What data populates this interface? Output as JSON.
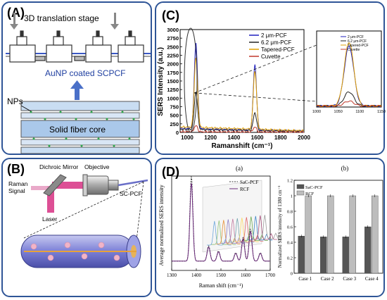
{
  "panel_a": {
    "label": "(A)",
    "stage_label": "3D translation stage",
    "fiber_label": "AuNP coated SCPCF",
    "nps_label": "NPs",
    "core_label": "Solid fiber core"
  },
  "panel_b": {
    "label": "(B)",
    "dichroic_label": "Dichroic Mirror",
    "objective_label": "Objective",
    "raman_label_1": "Raman",
    "raman_label_2": "Signal",
    "laser_label": "Laser",
    "pcf_label": "SC-PCF"
  },
  "panel_c": {
    "label": "(C)",
    "chart_data": {
      "type": "line",
      "xlabel": "Ramanshift (cm⁻¹)",
      "ylabel": "SERS Intensity (a.u.)",
      "xlim": [
        940,
        2000
      ],
      "ylim": [
        0,
        3000
      ],
      "xticks": [
        "1000",
        "1200",
        "1400",
        "1600",
        "1800",
        "2000"
      ],
      "yticks": [
        "0",
        "250",
        "500",
        "750",
        "1000",
        "1250",
        "1500",
        "1750",
        "2000",
        "2250",
        "2500",
        "2750",
        "3000"
      ],
      "legend_position": "top-right",
      "series": [
        {
          "name": "2 μm-PCF",
          "color": "#1f1fbf",
          "baseline": 120,
          "peaks": [
            [
              1075,
              2500
            ],
            [
              1580,
              1900
            ]
          ]
        },
        {
          "name": "6.2 μm-PCF",
          "color": "#222222",
          "baseline": 90,
          "peaks": [
            [
              1075,
              1100
            ],
            [
              1580,
              520
            ]
          ]
        },
        {
          "name": "Tapered-PCF",
          "color": "#e0a000",
          "baseline": 160,
          "peaks": [
            [
              1075,
              2050
            ],
            [
              1580,
              1700
            ]
          ]
        },
        {
          "name": "Cuvette",
          "color": "#c0392b",
          "baseline": 20,
          "peaks": [
            [
              1075,
              180
            ],
            [
              1580,
              150
            ]
          ]
        }
      ],
      "inset": {
        "xlim": [
          1000,
          1150
        ],
        "xticks": [
          "1000",
          "1050",
          "1100",
          "1150"
        ],
        "series_peaks": [
          2200,
          520,
          2350,
          180
        ]
      }
    }
  },
  "panel_d": {
    "label": "(D)",
    "sub_a": "(a)",
    "sub_b": "(b)",
    "left_chart": {
      "type": "line",
      "xlabel": "Raman shift (cm⁻¹)",
      "ylabel": "Average normalized SERS intensity",
      "xlim": [
        1300,
        1700
      ],
      "xticks": [
        "1300",
        "1400",
        "1500",
        "1600",
        "1700"
      ],
      "legend": [
        "SaC-PCF",
        "RCF"
      ]
    },
    "chart_data": {
      "type": "bar",
      "ylabel": "Normalized SERS intensity of 1380 cm⁻¹",
      "categories": [
        "Case 1",
        "Case 2",
        "Case 3",
        "Case 4"
      ],
      "ylim": [
        0,
        1.2
      ],
      "yticks": [
        "0",
        "0.2",
        "0.4",
        "0.6",
        "0.8",
        "1",
        "1.2"
      ],
      "legend_position": "top-left",
      "series": [
        {
          "name": "SaC-PCF",
          "color": "#555555",
          "values": [
            0.48,
            0.47,
            0.47,
            0.6
          ]
        },
        {
          "name": "RCF",
          "color": "#bdbdbd",
          "values": [
            1.0,
            1.0,
            1.0,
            1.0
          ]
        }
      ]
    }
  }
}
